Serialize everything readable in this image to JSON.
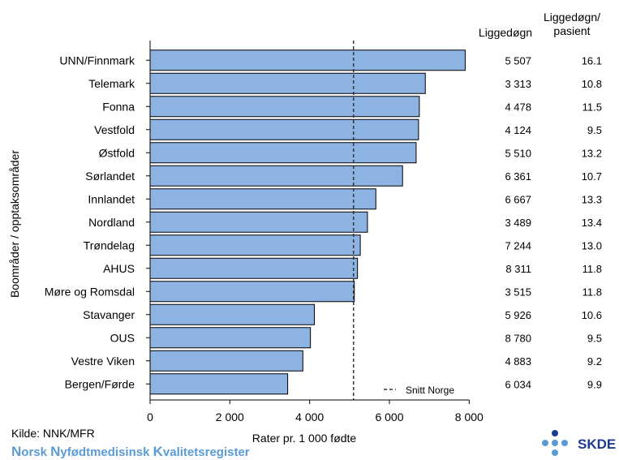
{
  "chart_data": {
    "type": "bar",
    "orientation": "horizontal",
    "categories": [
      "UNN/Finnmark",
      "Telemark",
      "Fonna",
      "Vestfold",
      "Østfold",
      "Sørlandet",
      "Innlandet",
      "Nordland",
      "Trøndelag",
      "AHUS",
      "Møre og Romsdal",
      "Stavanger",
      "OUS",
      "Vestre Viken",
      "Bergen/Førde"
    ],
    "values": [
      7900,
      6900,
      6750,
      6730,
      6670,
      6330,
      5660,
      5450,
      5270,
      5200,
      5120,
      4120,
      4020,
      3830,
      3450
    ],
    "liggedogn": [
      "5 507",
      "3 313",
      "4 478",
      "4 124",
      "5 510",
      "6 361",
      "6 667",
      "3 489",
      "7 244",
      "8 311",
      "3 515",
      "5 926",
      "8 780",
      "4 883",
      "6 034"
    ],
    "liggedogn_per_pasient": [
      "16.1",
      "10.8",
      "11.5",
      "9.5",
      "13.2",
      "10.7",
      "13.3",
      "13.4",
      "13.0",
      "11.8",
      "11.8",
      "10.6",
      "9.5",
      "9.2",
      "9.9"
    ],
    "reference_line": {
      "label": "Snitt Norge",
      "value": 5100
    },
    "xlabel": "Rater pr. 1 000 fødte",
    "ylabel": "Boområder / opptaksområder",
    "xlim": [
      0,
      8500
    ],
    "xticks": [
      0,
      2000,
      4000,
      6000,
      8000
    ],
    "xtick_labels": [
      "0",
      "2 000",
      "4 000",
      "6 000",
      "8 000"
    ],
    "col_header_1": "Liggedøgn",
    "col_header_2_line1": "Liggedøgn/",
    "col_header_2_line2": "pasient",
    "bar_color": "#8db3e2",
    "grid": false
  },
  "footer": {
    "source": "Kilde: NNK/MFR",
    "registry_parts": [
      "N",
      "orsk ",
      "N",
      "yfødtmedisinsk ",
      "K",
      "valitetsregister"
    ],
    "logo_text": "SKDE",
    "brand_color": "#1f3a93",
    "registry_color": "#5b9bd5"
  }
}
